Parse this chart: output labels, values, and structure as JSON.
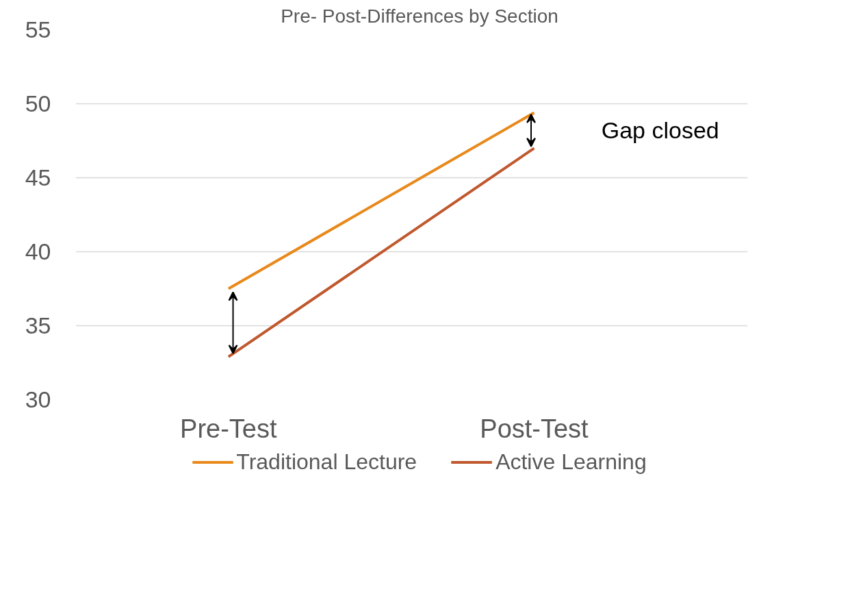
{
  "chart_data": {
    "type": "line",
    "title": "Pre- Post-Differences by Section",
    "categories": [
      "Pre-Test",
      "Post-Test"
    ],
    "series": [
      {
        "name": "Traditional Lecture",
        "color": "#e8891b",
        "values": [
          37.5,
          49.4
        ]
      },
      {
        "name": "Active Learning",
        "color": "#c0582e",
        "values": [
          32.9,
          47.0
        ]
      }
    ],
    "ylim": [
      30,
      55
    ],
    "yticks": [
      30,
      35,
      40,
      45,
      50,
      55
    ],
    "grid": "y",
    "legend": "bottom",
    "marker": "none",
    "line_style": "solid",
    "annotations": [
      "Gap closed"
    ]
  }
}
